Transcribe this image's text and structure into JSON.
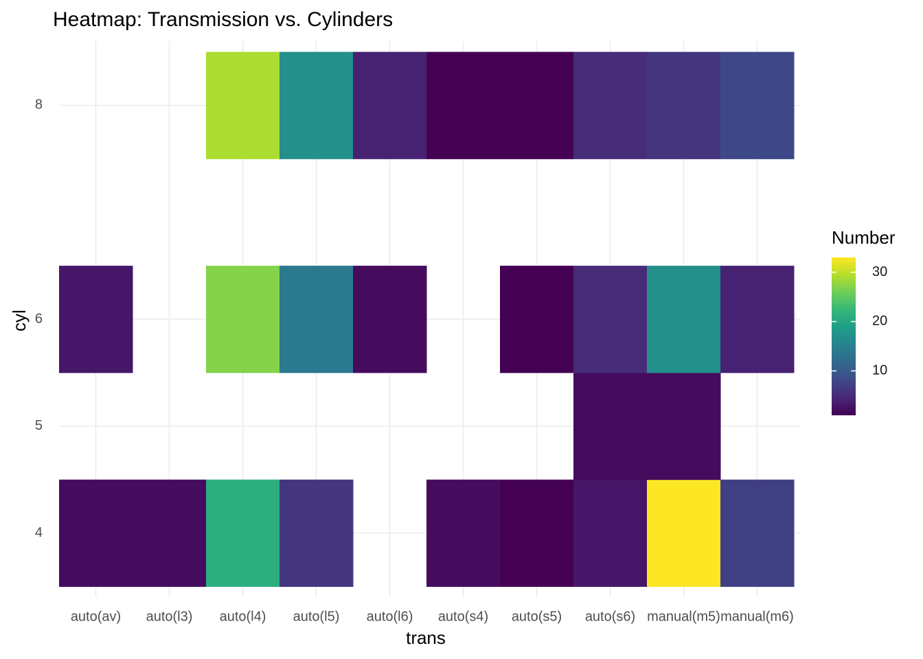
{
  "chart_data": {
    "type": "heatmap",
    "title": "Heatmap: Transmission vs. Cylinders",
    "x_label": "trans",
    "y_label": "cyl",
    "legend_title": "Number",
    "categories": [
      "auto(av)",
      "auto(l3)",
      "auto(l4)",
      "auto(l5)",
      "auto(l6)",
      "auto(s4)",
      "auto(s5)",
      "auto(s6)",
      "manual(m5)",
      "manual(m6)"
    ],
    "y": [
      4,
      5,
      6,
      8
    ],
    "values": [
      [
        2,
        2,
        21,
        6,
        null,
        2,
        1,
        3,
        33,
        7
      ],
      [
        null,
        null,
        null,
        null,
        null,
        null,
        null,
        2,
        2,
        null
      ],
      [
        3,
        null,
        27,
        14,
        2,
        null,
        1,
        5,
        17,
        4
      ],
      [
        null,
        null,
        29,
        17,
        4,
        1,
        1,
        5,
        6,
        8
      ]
    ],
    "ylim": [
      3.4,
      8.6
    ],
    "yticks": [
      4,
      5,
      6,
      8
    ],
    "clim": [
      1,
      33
    ],
    "cticks": [
      10,
      20,
      30
    ],
    "colorscale": [
      "#440154",
      "#482878",
      "#3e4989",
      "#31688e",
      "#26828e",
      "#1f9e89",
      "#35b779",
      "#6ece58",
      "#b5de2b",
      "#fde725"
    ],
    "grid": true
  }
}
